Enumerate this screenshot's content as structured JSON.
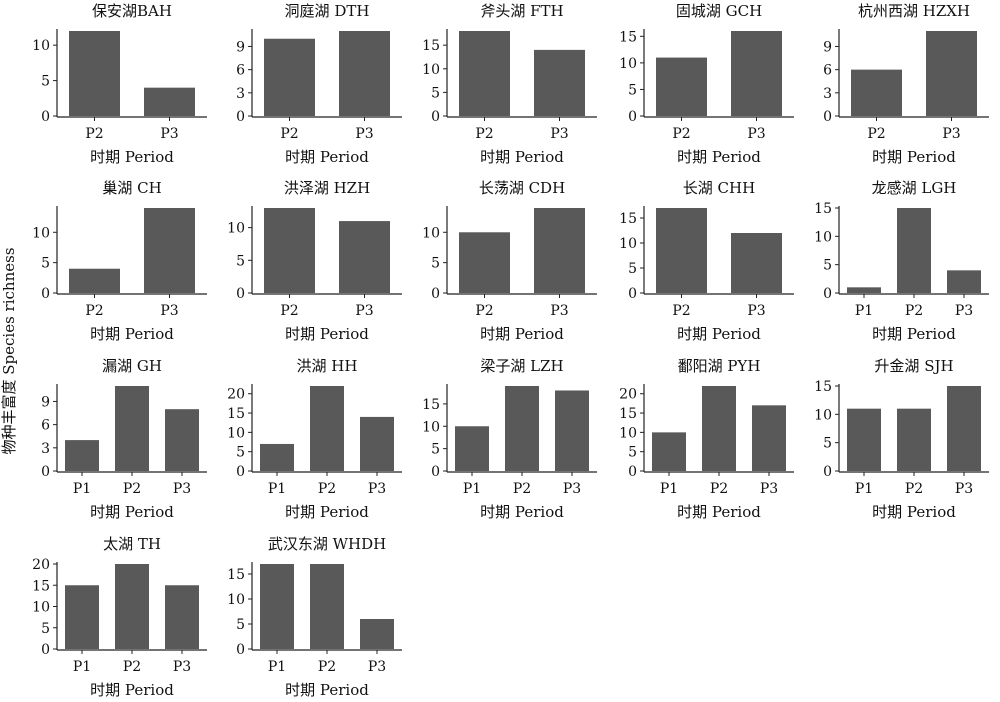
{
  "figure": {
    "ylabel": "物种丰富度 Species richness",
    "bar_color": "#595959",
    "axis_color": "#222222"
  },
  "chart_data": [
    {
      "type": "bar",
      "title": "保安湖BAH",
      "categories": [
        "P2",
        "P3"
      ],
      "values": [
        12,
        4
      ],
      "yticks": [
        0,
        5,
        10
      ],
      "ylim": [
        0,
        12
      ],
      "xlabel": "时期 Period"
    },
    {
      "type": "bar",
      "title": "洞庭湖 DTH",
      "categories": [
        "P2",
        "P3"
      ],
      "values": [
        10,
        11
      ],
      "yticks": [
        0,
        3,
        6,
        9
      ],
      "ylim": [
        0,
        11
      ],
      "xlabel": "时期 Period"
    },
    {
      "type": "bar",
      "title": "斧头湖 FTH",
      "categories": [
        "P2",
        "P3"
      ],
      "values": [
        18,
        14
      ],
      "yticks": [
        0,
        5,
        10,
        15
      ],
      "ylim": [
        0,
        18
      ],
      "xlabel": "时期 Period"
    },
    {
      "type": "bar",
      "title": "固城湖 GCH",
      "categories": [
        "P2",
        "P3"
      ],
      "values": [
        11,
        16
      ],
      "yticks": [
        0,
        5,
        10,
        15
      ],
      "ylim": [
        0,
        16
      ],
      "xlabel": "时期 Period"
    },
    {
      "type": "bar",
      "title": "杭州西湖 HZXH",
      "categories": [
        "P2",
        "P3"
      ],
      "values": [
        6,
        11
      ],
      "yticks": [
        0,
        3,
        6,
        9
      ],
      "ylim": [
        0,
        11
      ],
      "xlabel": "时期 Period"
    },
    {
      "type": "bar",
      "title": "巢湖 CH",
      "categories": [
        "P2",
        "P3"
      ],
      "values": [
        4,
        14
      ],
      "yticks": [
        0,
        5,
        10
      ],
      "ylim": [
        0,
        14
      ],
      "xlabel": "时期 Period"
    },
    {
      "type": "bar",
      "title": "洪泽湖 HZH",
      "categories": [
        "P2",
        "P3"
      ],
      "values": [
        13,
        11
      ],
      "yticks": [
        0,
        5,
        10
      ],
      "ylim": [
        0,
        13
      ],
      "xlabel": "时期 Period"
    },
    {
      "type": "bar",
      "title": "长荡湖 CDH",
      "categories": [
        "P2",
        "P3"
      ],
      "values": [
        10,
        14
      ],
      "yticks": [
        0,
        5,
        10
      ],
      "ylim": [
        0,
        14
      ],
      "xlabel": "时期 Period"
    },
    {
      "type": "bar",
      "title": "长湖 CHH",
      "categories": [
        "P2",
        "P3"
      ],
      "values": [
        17,
        12
      ],
      "yticks": [
        0,
        5,
        10,
        15
      ],
      "ylim": [
        0,
        17
      ],
      "xlabel": "时期 Period"
    },
    {
      "type": "bar",
      "title": "龙感湖 LGH",
      "categories": [
        "P1",
        "P2",
        "P3"
      ],
      "values": [
        1,
        15,
        4
      ],
      "yticks": [
        0,
        5,
        10,
        15
      ],
      "ylim": [
        0,
        15
      ],
      "xlabel": "时期 Period"
    },
    {
      "type": "bar",
      "title": "漏湖 GH",
      "categories": [
        "P1",
        "P2",
        "P3"
      ],
      "values": [
        4,
        11,
        8
      ],
      "yticks": [
        0,
        3,
        6,
        9
      ],
      "ylim": [
        0,
        11
      ],
      "xlabel": "时期 Period"
    },
    {
      "type": "bar",
      "title": "洪湖 HH",
      "categories": [
        "P1",
        "P2",
        "P3"
      ],
      "values": [
        7,
        22,
        14
      ],
      "yticks": [
        0,
        5,
        10,
        15,
        20
      ],
      "ylim": [
        0,
        22
      ],
      "xlabel": "时期 Period"
    },
    {
      "type": "bar",
      "title": "梁子湖 LZH",
      "categories": [
        "P1",
        "P2",
        "P3"
      ],
      "values": [
        10,
        19,
        18
      ],
      "yticks": [
        0,
        5,
        10,
        15
      ],
      "ylim": [
        0,
        19
      ],
      "xlabel": "时期 Period"
    },
    {
      "type": "bar",
      "title": "鄱阳湖 PYH",
      "categories": [
        "P1",
        "P2",
        "P3"
      ],
      "values": [
        10,
        22,
        17
      ],
      "yticks": [
        0,
        5,
        10,
        15,
        20
      ],
      "ylim": [
        0,
        22
      ],
      "xlabel": "时期 Period"
    },
    {
      "type": "bar",
      "title": "升金湖 SJH",
      "categories": [
        "P1",
        "P2",
        "P3"
      ],
      "values": [
        11,
        11,
        15
      ],
      "yticks": [
        0,
        5,
        10,
        15
      ],
      "ylim": [
        0,
        15
      ],
      "xlabel": "时期 Period"
    },
    {
      "type": "bar",
      "title": "太湖 TH",
      "categories": [
        "P1",
        "P2",
        "P3"
      ],
      "values": [
        15,
        20,
        15
      ],
      "yticks": [
        0,
        5,
        10,
        15,
        20
      ],
      "ylim": [
        0,
        20
      ],
      "xlabel": "时期 Period"
    },
    {
      "type": "bar",
      "title": "武汉东湖 WHDH",
      "categories": [
        "P1",
        "P2",
        "P3"
      ],
      "values": [
        17,
        17,
        6
      ],
      "yticks": [
        0,
        5,
        10,
        15
      ],
      "ylim": [
        0,
        17
      ],
      "xlabel": "时期 Period"
    }
  ]
}
